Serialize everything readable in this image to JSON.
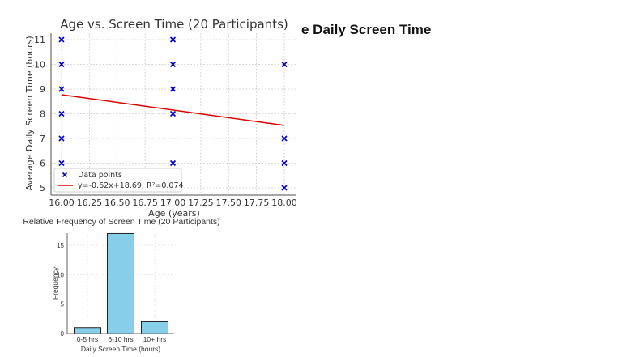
{
  "slide": {
    "title_fragment": "e Daily Screen Time"
  },
  "chart_data": [
    {
      "type": "scatter",
      "title": "Age vs. Screen Time (20 Participants)",
      "xlabel": "Age (years)",
      "ylabel": "Average Daily Screen Time (hours)",
      "xlim": [
        15.95,
        18.05
      ],
      "ylim": [
        4.75,
        11.25
      ],
      "xticks": [
        "16.00",
        "16.25",
        "16.50",
        "16.75",
        "17.00",
        "17.25",
        "17.50",
        "17.75",
        "18.00"
      ],
      "yticks": [
        "5",
        "6",
        "7",
        "8",
        "9",
        "10",
        "11"
      ],
      "grid": true,
      "legend_position": "lower left",
      "series": [
        {
          "name": "Data points",
          "marker": "x",
          "color": "#0000cc",
          "points": [
            [
              16,
              11
            ],
            [
              16,
              10
            ],
            [
              16,
              9
            ],
            [
              16,
              8
            ],
            [
              16,
              7
            ],
            [
              16,
              6
            ],
            [
              17,
              11
            ],
            [
              17,
              10
            ],
            [
              17,
              9
            ],
            [
              17,
              8
            ],
            [
              17,
              6
            ],
            [
              18,
              10
            ],
            [
              18,
              7
            ],
            [
              18,
              6
            ],
            [
              18,
              5
            ]
          ]
        },
        {
          "name": "y=-0.62x+18.69, R²=0.074",
          "type": "line",
          "color": "#dd0000",
          "slope": -0.62,
          "intercept": 18.69,
          "r_squared": 0.074,
          "x": [
            16,
            18
          ],
          "y": [
            8.77,
            7.53
          ]
        }
      ]
    },
    {
      "type": "bar",
      "title": "Relative Frequency of Screen Time (20 Participants)",
      "xlabel": "Daily Screen Time (hours)",
      "ylabel": "Frequency",
      "categories": [
        "0-5 hrs",
        "6-10 hrs",
        "10+ hrs"
      ],
      "values": [
        1,
        17,
        2
      ],
      "ylim": [
        0,
        18
      ],
      "yticks": [
        "0",
        "5",
        "10",
        "15"
      ],
      "bar_color": "#87ceeb",
      "grid": true
    }
  ]
}
